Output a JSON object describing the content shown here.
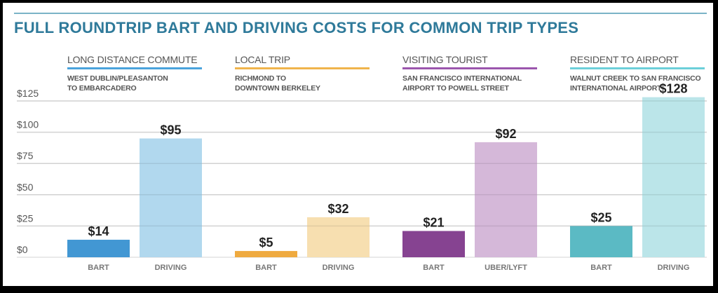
{
  "chart_data": {
    "type": "bar",
    "title": "FULL ROUNDTRIP BART AND DRIVING COSTS FOR COMMON TRIP TYPES",
    "xlabel": "",
    "ylabel": "",
    "ylim": [
      0,
      125
    ],
    "yticks": [
      0,
      25,
      50,
      75,
      100,
      125
    ],
    "ytick_labels": [
      "$0",
      "$25",
      "$50",
      "$75",
      "$100",
      "$125"
    ],
    "grid": true,
    "groups": [
      {
        "name": "LONG DISTANCE COMMUTE",
        "subtitle": "WEST DUBLIN/PLEASANTON\nTO EMBARCADERO",
        "accent": "#4aa3dc",
        "categories": [
          "BART",
          "DRIVING"
        ],
        "values": [
          14,
          95
        ],
        "labels": [
          "$14",
          "$95"
        ],
        "colors": [
          "#4297d3",
          "#a9d4ec"
        ]
      },
      {
        "name": "LOCAL TRIP",
        "subtitle": "RICHMOND TO\nDOWNTOWN BERKELEY",
        "accent": "#f0b44c",
        "categories": [
          "BART",
          "DRIVING"
        ],
        "values": [
          5,
          32
        ],
        "labels": [
          "$5",
          "$32"
        ],
        "colors": [
          "#efaa3f",
          "#f6dba7"
        ]
      },
      {
        "name": "VISITING TOURIST",
        "subtitle": "SAN FRANCISCO INTERNATIONAL\nAIRPORT TO POWELL STREET",
        "accent": "#9b56ad",
        "categories": [
          "BART",
          "UBER/LYFT"
        ],
        "values": [
          21,
          92
        ],
        "labels": [
          "$21",
          "$92"
        ],
        "colors": [
          "#864391",
          "#d0b0d5"
        ]
      },
      {
        "name": "RESIDENT TO AIRPORT",
        "subtitle": "WALNUT CREEK TO SAN FRANCISCO\nINTERNATIONAL AIRPORT",
        "accent": "#6ccfd9",
        "categories": [
          "BART",
          "DRIVING"
        ],
        "values": [
          25,
          128
        ],
        "labels": [
          "$25",
          "$128"
        ],
        "colors": [
          "#5bbac4",
          "#b4e2e7"
        ]
      }
    ]
  }
}
